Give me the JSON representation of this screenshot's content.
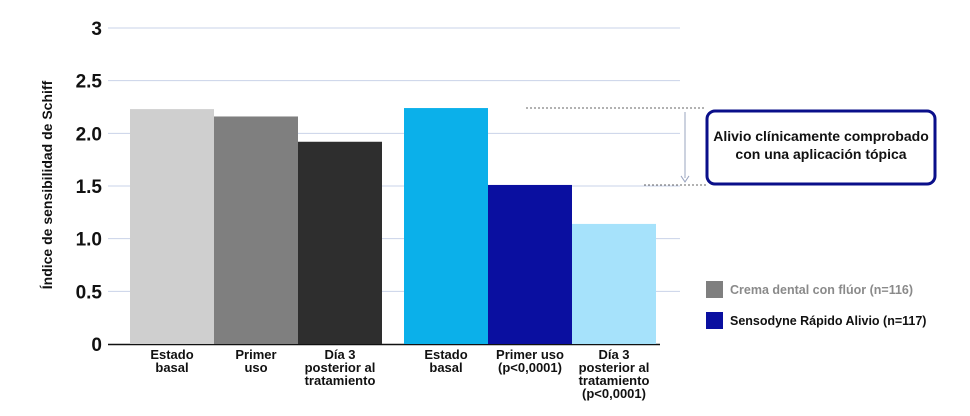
{
  "chart_data": {
    "type": "bar",
    "ylabel": "Índice de sensibilidad de Schiff",
    "ylim": [
      0,
      3
    ],
    "yticks": [
      "0",
      "0.5",
      "1.0",
      "1.5",
      "2.0",
      "2.5",
      "3"
    ],
    "grid": true,
    "groups": [
      {
        "name": "Crema dental con flúor (n=116)",
        "color": "#7f7f7f",
        "bars": [
          {
            "label": [
              "Estado",
              "basal"
            ],
            "value": 2.23,
            "color": "#cfcfcf"
          },
          {
            "label": [
              "Primer",
              "uso"
            ],
            "value": 2.16,
            "color": "#7f7f7f"
          },
          {
            "label": [
              "Día 3",
              "posterior al",
              "tratamiento"
            ],
            "value": 1.92,
            "color": "#2e2e2e"
          }
        ]
      },
      {
        "name": "Sensodyne Rápido Alivio (n=117)",
        "color": "#0a0fa0",
        "bars": [
          {
            "label": [
              "Estado",
              "basal"
            ],
            "value": 2.24,
            "color": "#0bb0ea"
          },
          {
            "label": [
              "Primer uso",
              "(p<0,0001)"
            ],
            "value": 1.51,
            "color": "#0a0fa0"
          },
          {
            "label": [
              "Día 3",
              "posterior al",
              "tratamiento",
              "(p<0,0001)"
            ],
            "value": 1.14,
            "color": "#a6e2fb"
          }
        ]
      }
    ],
    "legend_position": "right",
    "annotation": [
      "Alivio clínicamente comprobado",
      "con una aplicación tópica"
    ]
  }
}
